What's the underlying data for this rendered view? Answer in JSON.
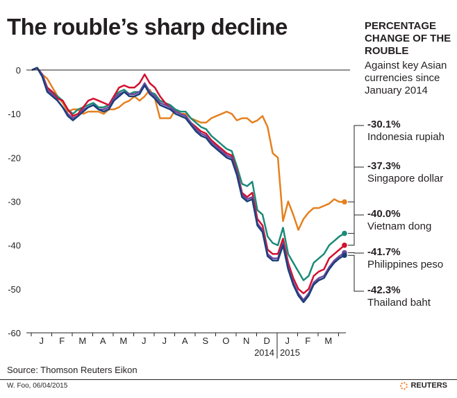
{
  "title": "The rouble’s sharp decline",
  "side_title": "PERCENTAGE CHANGE OF THE ROUBLE",
  "side_subtitle": "Against key Asian currencies since January 2014",
  "source": "Source: Thomson Reuters Eikon",
  "credit": "W. Foo, 06/04/2015",
  "brand": "REUTERS",
  "chart_data": {
    "type": "line",
    "title": "The rouble’s sharp decline",
    "ylim": [
      -60,
      0
    ],
    "yticks": [
      0,
      -10,
      -20,
      -30,
      -40,
      -50,
      -60
    ],
    "ytick_labels": [
      "0",
      "-10",
      "-20",
      "-30",
      "-40",
      "-50",
      "-60"
    ],
    "month_labels": [
      "J",
      "F",
      "M",
      "A",
      "M",
      "J",
      "J",
      "A",
      "S",
      "O",
      "N",
      "D",
      "J",
      "F",
      "M"
    ],
    "year_labels": [
      "2014",
      "2015"
    ],
    "grid": false,
    "series": [
      {
        "name": "Indonesia rupiah",
        "change_label": "-30.1%",
        "final": -30.1,
        "color": "#e5801f",
        "values": [
          0,
          0.5,
          -1,
          -2,
          -4,
          -6,
          -7.5,
          -9.5,
          -9,
          -9,
          -10,
          -9.5,
          -9.5,
          -9.5,
          -10,
          -9,
          -9,
          -8.5,
          -7.5,
          -7,
          -6,
          -7,
          -6,
          -4.5,
          -6.5,
          -11,
          -11,
          -11,
          -9,
          -10,
          -10,
          -11,
          -11.5,
          -12,
          -12,
          -11,
          -10.5,
          -10,
          -9.5,
          -10,
          -11.5,
          -11,
          -11,
          -12,
          -11.5,
          -10.5,
          -13,
          -19,
          -20,
          -34.5,
          -30,
          -33,
          -36.5,
          -34,
          -32.5,
          -31.5,
          -31.5,
          -31,
          -30.5,
          -29.5,
          -30.1,
          -30.1
        ]
      },
      {
        "name": "Singapore dollar",
        "change_label": "-37.3%",
        "final": -37.3,
        "color": "#1a8a78",
        "values": [
          0,
          0.5,
          -1,
          -4,
          -5,
          -6,
          -7,
          -9,
          -10,
          -9,
          -8.5,
          -8,
          -7.5,
          -8.5,
          -8.5,
          -8,
          -6,
          -5,
          -4.5,
          -5.5,
          -5,
          -5,
          -3,
          -5,
          -5.5,
          -7,
          -7.5,
          -8,
          -9,
          -9.5,
          -9.5,
          -11,
          -12,
          -13,
          -13.5,
          -15,
          -16,
          -17,
          -18,
          -18.5,
          -22,
          -26,
          -26.5,
          -25.5,
          -32,
          -33,
          -38,
          -39.5,
          -40,
          -36,
          -42,
          -44,
          -46,
          -48,
          -47,
          -44,
          -43,
          -42,
          -40,
          -39,
          -38,
          -37.3
        ]
      },
      {
        "name": "Vietnam dong",
        "change_label": "-40.0%",
        "final": -40.0,
        "color": "#d3102e",
        "values": [
          0,
          0.5,
          -1,
          -4,
          -5,
          -6.5,
          -7,
          -9,
          -10.5,
          -10,
          -8.5,
          -7,
          -6.5,
          -7,
          -7.5,
          -8,
          -6,
          -4,
          -3.5,
          -4,
          -4,
          -3,
          -1,
          -3,
          -4,
          -6,
          -7.5,
          -8.5,
          -9.5,
          -10,
          -10.5,
          -12,
          -13,
          -14,
          -14.5,
          -16,
          -17,
          -18,
          -19,
          -19.5,
          -23,
          -28,
          -29,
          -28,
          -34,
          -35.5,
          -41,
          -42,
          -42,
          -38.5,
          -44,
          -47.5,
          -50,
          -51,
          -50,
          -47,
          -46,
          -45.5,
          -43,
          -42,
          -41,
          -40
        ]
      },
      {
        "name": "Philippines peso",
        "change_label": "-41.7%",
        "final": -41.7,
        "color": "#6e4aa0",
        "values": [
          0,
          0.5,
          -1,
          -4.5,
          -5.5,
          -7,
          -8.5,
          -10,
          -11,
          -10.5,
          -9,
          -8.5,
          -8,
          -9,
          -9,
          -8.5,
          -6.5,
          -5.5,
          -5,
          -5.5,
          -5.5,
          -5,
          -3,
          -5,
          -6,
          -7.5,
          -8,
          -8.5,
          -9.5,
          -10,
          -10.5,
          -12,
          -13.5,
          -14.5,
          -15,
          -16.5,
          -17.5,
          -18.5,
          -19.5,
          -20,
          -23.5,
          -28.5,
          -29.5,
          -29,
          -35,
          -36.5,
          -42,
          -43,
          -43,
          -39.5,
          -45,
          -48.5,
          -51,
          -52.5,
          -51,
          -48.5,
          -47.5,
          -47,
          -45,
          -43.5,
          -42.5,
          -41.7
        ]
      },
      {
        "name": "Thailand baht",
        "change_label": "-42.3%",
        "final": -42.3,
        "color": "#1a3f78",
        "values": [
          0,
          0.5,
          -1.5,
          -5,
          -6,
          -7,
          -8.5,
          -10.5,
          -11.5,
          -10.5,
          -9.5,
          -8.5,
          -8,
          -9,
          -9.5,
          -9,
          -7,
          -6,
          -5,
          -6,
          -6,
          -5.5,
          -3.5,
          -5.5,
          -6.5,
          -8,
          -8.5,
          -9,
          -10,
          -10.5,
          -11,
          -12.5,
          -14,
          -15,
          -15.5,
          -17,
          -18,
          -19,
          -20,
          -20.5,
          -24,
          -29,
          -30,
          -29.5,
          -35.5,
          -37,
          -42.5,
          -43.5,
          -43.5,
          -40,
          -45.5,
          -49,
          -51.5,
          -53,
          -51.5,
          -49,
          -48,
          -47.5,
          -45.5,
          -44,
          -43,
          -42.3
        ]
      }
    ]
  }
}
